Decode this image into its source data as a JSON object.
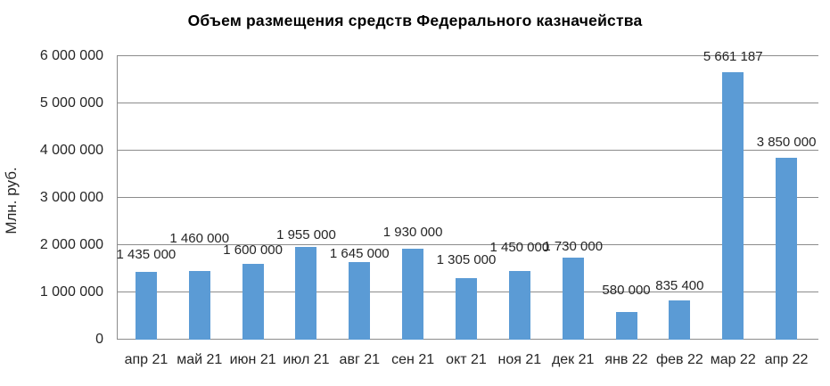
{
  "chart": {
    "title": "Объем размещения средств Федерального казначейства",
    "y_axis_title": "Млн. руб."
  },
  "chart_data": {
    "type": "bar",
    "title": "Объем размещения средств Федерального казначейства",
    "xlabel": "",
    "ylabel": "Млн. руб.",
    "categories": [
      "апр 21",
      "май 21",
      "июн 21",
      "июл 21",
      "авг 21",
      "сен 21",
      "окт 21",
      "ноя 21",
      "дек 21",
      "янв 22",
      "фев 22",
      "мар 22",
      "апр 22"
    ],
    "values": [
      1435000,
      1460000,
      1600000,
      1955000,
      1645000,
      1930000,
      1305000,
      1450000,
      1730000,
      580000,
      835400,
      5661187,
      3850000
    ],
    "data_labels": [
      "1 435 000",
      "1 460 000",
      "1 600 000",
      "1 955 000",
      "1 645 000",
      "1 930 000",
      "1 305 000",
      "1 450 000",
      "1 730 000",
      "580 000",
      "835 400",
      "5 661 187",
      "3 850 000"
    ],
    "ylim": [
      0,
      6000000
    ],
    "ytick_interval": 1000000,
    "ytick_labels": [
      "0",
      "1 000 000",
      "2 000 000",
      "3 000 000",
      "4 000 000",
      "5 000 000",
      "6 000 000"
    ],
    "grid": true,
    "legend": "none",
    "colors": {
      "bar": "#5B9BD5",
      "gridline": "#8C8C8C",
      "axis": "#8C8C8C",
      "title_text": "#000000",
      "label_text": "#262626",
      "background": "#FFFFFF"
    }
  }
}
